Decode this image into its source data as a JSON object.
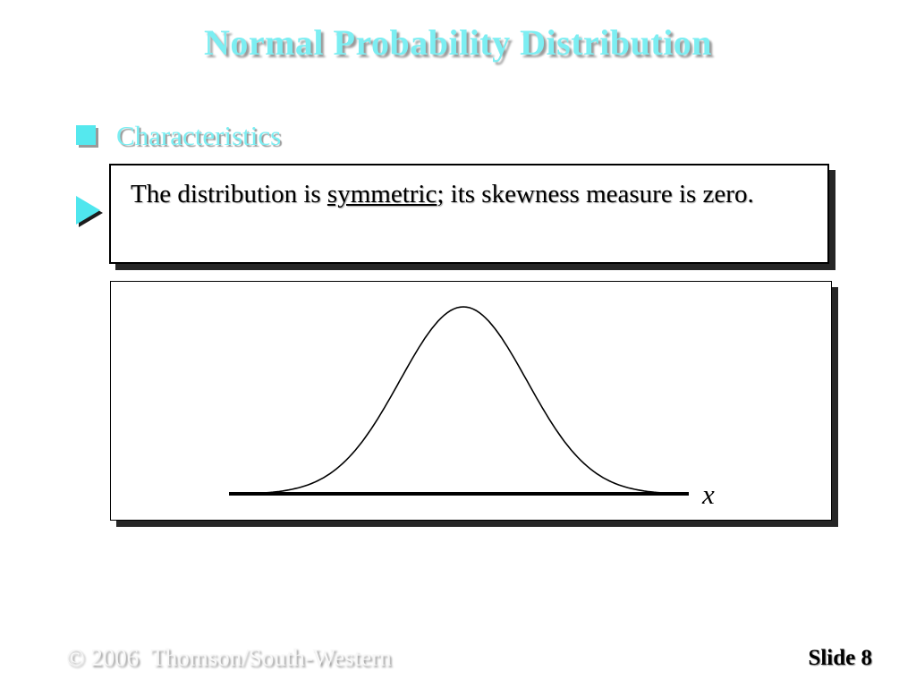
{
  "slide": {
    "title": "Normal Probability Distribution",
    "bullets": {
      "level1": "Characteristics"
    },
    "callout": {
      "text_before": "The distribution is ",
      "text_underlined": "symmetric",
      "text_after": "; its skewness measure is zero."
    },
    "footer": {
      "copyright": "© 2006  Thomson/South-Western",
      "slide_number": "Slide 8"
    },
    "colors": {
      "title_cyan": "#7ceef2",
      "bullet_square_cyan": "#55e8ee",
      "arrow_cyan": "#4fe6ee",
      "shadow_gray": "#9a9a9a",
      "box_shadow_dark": "#262626"
    }
  },
  "chart_data": {
    "type": "line",
    "title": "",
    "xlabel": "x",
    "ylabel": "",
    "legend": "none",
    "grid": false,
    "series": [
      {
        "name": "normal-pdf-bell-curve",
        "distribution": "normal",
        "mean": 0,
        "sigma": 1,
        "x_range": [
          -3.1,
          3.1
        ],
        "peak_at_mean": true,
        "skewness": 0
      }
    ],
    "axes": {
      "x_axis_line": true,
      "ticks": [],
      "tick_labels": []
    }
  }
}
